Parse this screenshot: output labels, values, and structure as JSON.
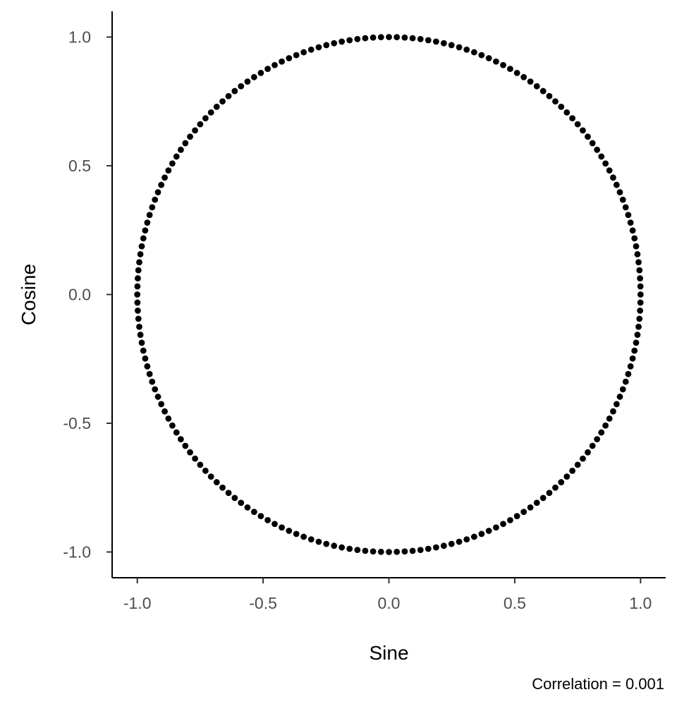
{
  "chart_data": {
    "type": "scatter",
    "title": "",
    "xlabel": "Sine",
    "ylabel": "Cosine",
    "caption": "Correlation = 0.001",
    "xlim": [
      -1.1,
      1.1
    ],
    "ylim": [
      -1.1,
      1.1
    ],
    "x_ticks": [
      -1.0,
      -0.5,
      0.0,
      0.5,
      1.0
    ],
    "x_tick_labels": [
      "-1.0",
      "-0.5",
      "0.0",
      "0.5",
      "1.0"
    ],
    "y_ticks": [
      -1.0,
      -0.5,
      0.0,
      0.5,
      1.0
    ],
    "y_tick_labels": [
      "-1.0",
      "-0.5",
      "0.0",
      "0.5",
      "1.0"
    ],
    "grid": false,
    "legend": "none",
    "point_color": "#000000",
    "axis_color": "#000000",
    "series": [
      {
        "points": [
          [
            0.0,
            1.0
          ],
          [
            0.0314,
            0.9995
          ],
          [
            0.0628,
            0.998
          ],
          [
            0.0941,
            0.9956
          ],
          [
            0.1253,
            0.9921
          ],
          [
            0.1564,
            0.9877
          ],
          [
            0.1874,
            0.9823
          ],
          [
            0.2181,
            0.9759
          ],
          [
            0.2487,
            0.9686
          ],
          [
            0.279,
            0.9603
          ],
          [
            0.309,
            0.9511
          ],
          [
            0.3387,
            0.9409
          ],
          [
            0.3681,
            0.9298
          ],
          [
            0.3971,
            0.9178
          ],
          [
            0.4258,
            0.9048
          ],
          [
            0.454,
            0.891
          ],
          [
            0.4818,
            0.8763
          ],
          [
            0.509,
            0.8607
          ],
          [
            0.5358,
            0.8443
          ],
          [
            0.5621,
            0.8271
          ],
          [
            0.5878,
            0.809
          ],
          [
            0.6129,
            0.7902
          ],
          [
            0.6374,
            0.7705
          ],
          [
            0.6613,
            0.7501
          ],
          [
            0.6845,
            0.729
          ],
          [
            0.7071,
            0.7071
          ],
          [
            0.729,
            0.6845
          ],
          [
            0.7501,
            0.6613
          ],
          [
            0.7705,
            0.6374
          ],
          [
            0.7902,
            0.6129
          ],
          [
            0.809,
            0.5878
          ],
          [
            0.8271,
            0.5621
          ],
          [
            0.8443,
            0.5358
          ],
          [
            0.8607,
            0.509
          ],
          [
            0.8763,
            0.4818
          ],
          [
            0.891,
            0.454
          ],
          [
            0.9048,
            0.4258
          ],
          [
            0.9178,
            0.3971
          ],
          [
            0.9298,
            0.3681
          ],
          [
            0.9409,
            0.3387
          ],
          [
            0.9511,
            0.309
          ],
          [
            0.9603,
            0.279
          ],
          [
            0.9686,
            0.2487
          ],
          [
            0.9759,
            0.2181
          ],
          [
            0.9823,
            0.1874
          ],
          [
            0.9877,
            0.1564
          ],
          [
            0.9921,
            0.1253
          ],
          [
            0.9956,
            0.0941
          ],
          [
            0.998,
            0.0628
          ],
          [
            0.9995,
            0.0314
          ],
          [
            1.0,
            0.0
          ],
          [
            0.9995,
            -0.0314
          ],
          [
            0.998,
            -0.0628
          ],
          [
            0.9956,
            -0.0941
          ],
          [
            0.9921,
            -0.1253
          ],
          [
            0.9877,
            -0.1564
          ],
          [
            0.9823,
            -0.1874
          ],
          [
            0.9759,
            -0.2181
          ],
          [
            0.9686,
            -0.2487
          ],
          [
            0.9603,
            -0.279
          ],
          [
            0.9511,
            -0.309
          ],
          [
            0.9409,
            -0.3387
          ],
          [
            0.9298,
            -0.3681
          ],
          [
            0.9178,
            -0.3971
          ],
          [
            0.9048,
            -0.4258
          ],
          [
            0.891,
            -0.454
          ],
          [
            0.8763,
            -0.4818
          ],
          [
            0.8607,
            -0.509
          ],
          [
            0.8443,
            -0.5358
          ],
          [
            0.8271,
            -0.5621
          ],
          [
            0.809,
            -0.5878
          ],
          [
            0.7902,
            -0.6129
          ],
          [
            0.7705,
            -0.6374
          ],
          [
            0.7501,
            -0.6613
          ],
          [
            0.729,
            -0.6845
          ],
          [
            0.7071,
            -0.7071
          ],
          [
            0.6845,
            -0.729
          ],
          [
            0.6613,
            -0.7501
          ],
          [
            0.6374,
            -0.7705
          ],
          [
            0.6129,
            -0.7902
          ],
          [
            0.5878,
            -0.809
          ],
          [
            0.5621,
            -0.8271
          ],
          [
            0.5358,
            -0.8443
          ],
          [
            0.509,
            -0.8607
          ],
          [
            0.4818,
            -0.8763
          ],
          [
            0.454,
            -0.891
          ],
          [
            0.4258,
            -0.9048
          ],
          [
            0.3971,
            -0.9178
          ],
          [
            0.3681,
            -0.9298
          ],
          [
            0.3387,
            -0.9409
          ],
          [
            0.309,
            -0.9511
          ],
          [
            0.279,
            -0.9603
          ],
          [
            0.2487,
            -0.9686
          ],
          [
            0.2181,
            -0.9759
          ],
          [
            0.1874,
            -0.9823
          ],
          [
            0.1564,
            -0.9877
          ],
          [
            0.1253,
            -0.9921
          ],
          [
            0.0941,
            -0.9956
          ],
          [
            0.0628,
            -0.998
          ],
          [
            0.0314,
            -0.9995
          ],
          [
            0.0,
            -1.0
          ],
          [
            -0.0314,
            -0.9995
          ],
          [
            -0.0628,
            -0.998
          ],
          [
            -0.0941,
            -0.9956
          ],
          [
            -0.1253,
            -0.9921
          ],
          [
            -0.1564,
            -0.9877
          ],
          [
            -0.1874,
            -0.9823
          ],
          [
            -0.2181,
            -0.9759
          ],
          [
            -0.2487,
            -0.9686
          ],
          [
            -0.279,
            -0.9603
          ],
          [
            -0.309,
            -0.9511
          ],
          [
            -0.3387,
            -0.9409
          ],
          [
            -0.3681,
            -0.9298
          ],
          [
            -0.3971,
            -0.9178
          ],
          [
            -0.4258,
            -0.9048
          ],
          [
            -0.454,
            -0.891
          ],
          [
            -0.4818,
            -0.8763
          ],
          [
            -0.509,
            -0.8607
          ],
          [
            -0.5358,
            -0.8443
          ],
          [
            -0.5621,
            -0.8271
          ],
          [
            -0.5878,
            -0.809
          ],
          [
            -0.6129,
            -0.7902
          ],
          [
            -0.6374,
            -0.7705
          ],
          [
            -0.6613,
            -0.7501
          ],
          [
            -0.6845,
            -0.729
          ],
          [
            -0.7071,
            -0.7071
          ],
          [
            -0.729,
            -0.6845
          ],
          [
            -0.7501,
            -0.6613
          ],
          [
            -0.7705,
            -0.6374
          ],
          [
            -0.7902,
            -0.6129
          ],
          [
            -0.809,
            -0.5878
          ],
          [
            -0.8271,
            -0.5621
          ],
          [
            -0.8443,
            -0.5358
          ],
          [
            -0.8607,
            -0.509
          ],
          [
            -0.8763,
            -0.4818
          ],
          [
            -0.891,
            -0.454
          ],
          [
            -0.9048,
            -0.4258
          ],
          [
            -0.9178,
            -0.3971
          ],
          [
            -0.9298,
            -0.3681
          ],
          [
            -0.9409,
            -0.3387
          ],
          [
            -0.9511,
            -0.309
          ],
          [
            -0.9603,
            -0.279
          ],
          [
            -0.9686,
            -0.2487
          ],
          [
            -0.9759,
            -0.2181
          ],
          [
            -0.9823,
            -0.1874
          ],
          [
            -0.9877,
            -0.1564
          ],
          [
            -0.9921,
            -0.1253
          ],
          [
            -0.9956,
            -0.0941
          ],
          [
            -0.998,
            -0.0628
          ],
          [
            -0.9995,
            -0.0314
          ],
          [
            -1.0,
            0.0
          ],
          [
            -0.9995,
            0.0314
          ],
          [
            -0.998,
            0.0628
          ],
          [
            -0.9956,
            0.0941
          ],
          [
            -0.9921,
            0.1253
          ],
          [
            -0.9877,
            0.1564
          ],
          [
            -0.9823,
            0.1874
          ],
          [
            -0.9759,
            0.2181
          ],
          [
            -0.9686,
            0.2487
          ],
          [
            -0.9603,
            0.279
          ],
          [
            -0.9511,
            0.309
          ],
          [
            -0.9409,
            0.3387
          ],
          [
            -0.9298,
            0.3681
          ],
          [
            -0.9178,
            0.3971
          ],
          [
            -0.9048,
            0.4258
          ],
          [
            -0.891,
            0.454
          ],
          [
            -0.8763,
            0.4818
          ],
          [
            -0.8607,
            0.509
          ],
          [
            -0.8443,
            0.5358
          ],
          [
            -0.8271,
            0.5621
          ],
          [
            -0.809,
            0.5878
          ],
          [
            -0.7902,
            0.6129
          ],
          [
            -0.7705,
            0.6374
          ],
          [
            -0.7501,
            0.6613
          ],
          [
            -0.729,
            0.6845
          ],
          [
            -0.7071,
            0.7071
          ],
          [
            -0.6845,
            0.729
          ],
          [
            -0.6613,
            0.7501
          ],
          [
            -0.6374,
            0.7705
          ],
          [
            -0.6129,
            0.7902
          ],
          [
            -0.5878,
            0.809
          ],
          [
            -0.5621,
            0.8271
          ],
          [
            -0.5358,
            0.8443
          ],
          [
            -0.509,
            0.8607
          ],
          [
            -0.4818,
            0.8763
          ],
          [
            -0.454,
            0.891
          ],
          [
            -0.4258,
            0.9048
          ],
          [
            -0.3971,
            0.9178
          ],
          [
            -0.3681,
            0.9298
          ],
          [
            -0.3387,
            0.9409
          ],
          [
            -0.309,
            0.9511
          ],
          [
            -0.279,
            0.9603
          ],
          [
            -0.2487,
            0.9686
          ],
          [
            -0.2181,
            0.9759
          ],
          [
            -0.1874,
            0.9823
          ],
          [
            -0.1564,
            0.9877
          ],
          [
            -0.1253,
            0.9921
          ],
          [
            -0.0941,
            0.9956
          ],
          [
            -0.0628,
            0.998
          ],
          [
            -0.0314,
            0.9995
          ]
        ]
      }
    ]
  }
}
